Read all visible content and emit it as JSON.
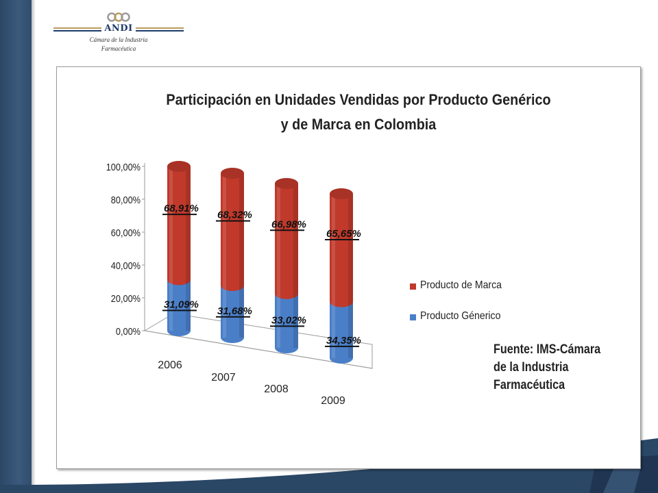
{
  "logo": {
    "name": "ANDI",
    "subtitle_line1": "Cámara de la Industria",
    "subtitle_line2": "Farmacéutica"
  },
  "colors": {
    "navy": "#2b4766",
    "marca": "#c0392b",
    "generico": "#4a7fc8",
    "gold": "#b89b5e"
  },
  "source_text": "Fuente: IMS-Cámara de la Industria Farmacéutica",
  "chart_data": {
    "type": "bar",
    "stacked": true,
    "style": "3d-cylinder",
    "title": "Participación en Unidades Vendidas por Producto Genérico y de Marca en Colombia",
    "categories": [
      "2006",
      "2007",
      "2008",
      "2009"
    ],
    "series": [
      {
        "name": "Producto Génerico",
        "values": [
          31.09,
          31.68,
          33.02,
          34.35
        ],
        "labels": [
          "31,09%",
          "31,68%",
          "33,02%",
          "34,35%"
        ],
        "color": "#4a7fc8"
      },
      {
        "name": "Producto de Marca",
        "values": [
          68.91,
          68.32,
          66.98,
          65.65
        ],
        "labels": [
          "68,91%",
          "68,32%",
          "66,98%",
          "65,65%"
        ],
        "color": "#c0392b"
      }
    ],
    "yticks": [
      "0,00%",
      "20,00%",
      "40,00%",
      "60,00%",
      "80,00%",
      "100,00%"
    ],
    "ylim": [
      0,
      100
    ],
    "legend_position": "right",
    "legend": [
      "Producto de Marca",
      "Producto Génerico"
    ]
  }
}
